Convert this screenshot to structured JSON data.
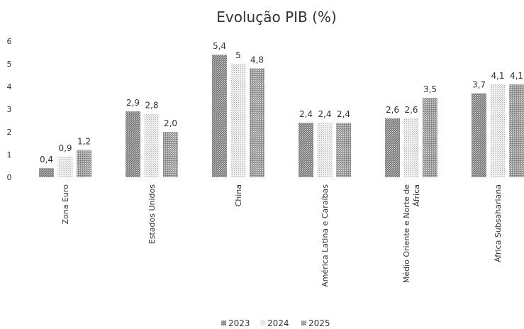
{
  "chart_data": {
    "type": "bar",
    "title": "Evolução PIB (%)",
    "categories": [
      "Zona Euro",
      "Estados  Unidos",
      "China",
      "América Latina e Caraíbas",
      "Médio Oriente e Norte de África",
      "África Subsahariana"
    ],
    "category_lines": [
      [
        "Zona Euro"
      ],
      [
        "Estados  Unidos"
      ],
      [
        "China"
      ],
      [
        "América Latina e Caraíbas"
      ],
      [
        "Médio Oriente e Norte de",
        "África"
      ],
      [
        "África Subsahariana"
      ]
    ],
    "series": [
      {
        "name": "2023",
        "values": [
          0.4,
          2.9,
          5.4,
          2.4,
          2.6,
          3.7
        ],
        "labels": [
          "0,4",
          "2,9",
          "5,4",
          "2,4",
          "2,6",
          "3,7"
        ],
        "pattern": "dense"
      },
      {
        "name": "2024",
        "values": [
          0.9,
          2.8,
          5.0,
          2.4,
          2.6,
          4.1
        ],
        "labels": [
          "0,9",
          "2,8",
          "5",
          "2,4",
          "2,6",
          "4,1"
        ],
        "pattern": "sparse"
      },
      {
        "name": "2025",
        "values": [
          1.2,
          2.0,
          4.8,
          2.4,
          3.5,
          4.1
        ],
        "labels": [
          "1,2",
          "2,0",
          "4,8",
          "2,4",
          "3,5",
          "4,1"
        ],
        "pattern": "medium"
      }
    ],
    "yticks": [
      "0",
      "1",
      "2",
      "3",
      "4",
      "5",
      "6"
    ],
    "ylim": [
      0,
      6
    ],
    "grid": false,
    "legend_position": "bottom-center"
  }
}
